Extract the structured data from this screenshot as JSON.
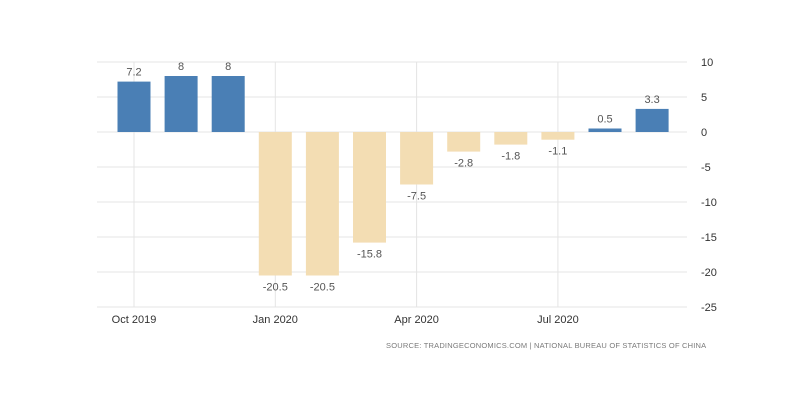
{
  "chart_data": {
    "type": "bar",
    "categories": [
      "Oct 2019",
      "Nov 2019",
      "Dec 2019",
      "Jan 2020",
      "Feb 2020",
      "Mar 2020",
      "Apr 2020",
      "May 2020",
      "Jun 2020",
      "Jul 2020",
      "Aug 2020",
      "Sep 2020"
    ],
    "values": [
      7.2,
      8,
      8,
      -20.5,
      -20.5,
      -15.8,
      -7.5,
      -2.8,
      -1.8,
      -1.1,
      0.5,
      3.3
    ],
    "data_labels": [
      "7.2",
      "8",
      "8",
      "-20.5",
      "-20.5",
      "-15.8",
      "-7.5",
      "-2.8",
      "-1.8",
      "-1.1",
      "0.5",
      "3.3"
    ],
    "x_tick_labels": [
      {
        "category": "Oct 2019",
        "label": "Oct 2019"
      },
      {
        "category": "Jan 2020",
        "label": "Jan 2020"
      },
      {
        "category": "Apr 2020",
        "label": "Apr 2020"
      },
      {
        "category": "Jul 2020",
        "label": "Jul 2020"
      }
    ],
    "y_ticks": [
      10,
      5,
      0,
      -5,
      -10,
      -15,
      -20,
      -25
    ],
    "y_tick_labels": [
      "10",
      "5",
      "0",
      "-5",
      "-10",
      "-15",
      "-20",
      "-25"
    ],
    "ylim": [
      -25,
      10
    ],
    "y_axis_side": "right",
    "grid": true,
    "colors": {
      "positive": "#4a7fb5",
      "negative": "#f3ddb3",
      "grid": "#e4e4e4",
      "text": "#555555"
    },
    "title": "",
    "xlabel": "",
    "ylabel": ""
  },
  "source": "SOURCE: TRADINGECONOMICS.COM | NATIONAL BUREAU OF STATISTICS OF CHINA"
}
